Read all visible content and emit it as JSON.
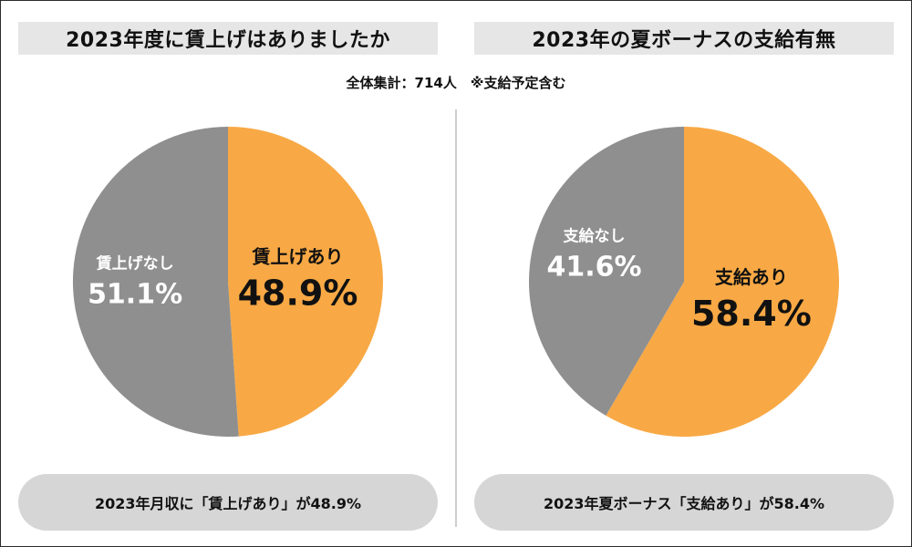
{
  "total_note": "全体集計：714人　※支給予定含む",
  "colors": {
    "yes": "#f8a945",
    "no": "#8f8f8f",
    "title_bar": "#e6e6e6",
    "caption_bar": "#d6d6d6",
    "yes_text": "#111111",
    "no_text": "#ffffff"
  },
  "chart_data": [
    {
      "type": "pie",
      "title": "2023年度に賃上げはありましたか",
      "slices": [
        {
          "label": "賃上げあり",
          "value": 48.9,
          "value_label": "48.9%"
        },
        {
          "label": "賃上げなし",
          "value": 51.1,
          "value_label": "51.1%"
        }
      ],
      "caption": "2023年月収に「賃上げあり」が48.9%"
    },
    {
      "type": "pie",
      "title": "2023年の夏ボーナスの支給有無",
      "slices": [
        {
          "label": "支給あり",
          "value": 58.4,
          "value_label": "58.4%"
        },
        {
          "label": "支給なし",
          "value": 41.6,
          "value_label": "41.6%"
        }
      ],
      "caption": "2023年夏ボーナス「支給あり」が58.4%"
    }
  ]
}
